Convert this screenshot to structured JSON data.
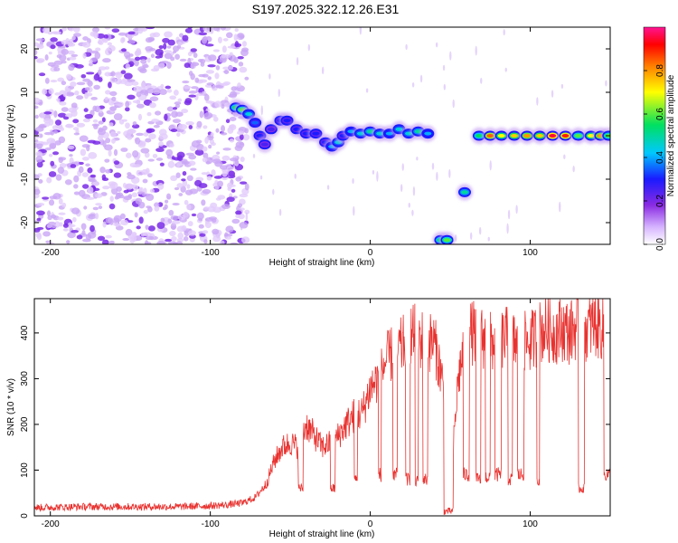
{
  "title": "S197.2025.322.12.26.E31",
  "chart_data": [
    {
      "type": "heatmap",
      "name": "spectrogram",
      "xlabel": "Height of straight line (km)",
      "ylabel": "Frequency (Hz)",
      "xlim": [
        -210,
        150
      ],
      "ylim": [
        -25,
        25
      ],
      "xticks": [
        -200,
        -100,
        0,
        100
      ],
      "yticks": [
        -20,
        -10,
        0,
        10,
        20
      ],
      "noise_region_x": [
        -210,
        -85
      ],
      "frequency_track": [
        {
          "x": -84,
          "f": 6.5,
          "a": 0.55
        },
        {
          "x": -80,
          "f": 6.0,
          "a": 0.6
        },
        {
          "x": -76,
          "f": 5.0,
          "a": 0.45
        },
        {
          "x": -72,
          "f": 3.0,
          "a": 0.35
        },
        {
          "x": -69,
          "f": 0.0,
          "a": 0.3
        },
        {
          "x": -66,
          "f": -2.0,
          "a": 0.25
        },
        {
          "x": -62,
          "f": 1.5,
          "a": 0.25
        },
        {
          "x": -56,
          "f": 3.5,
          "a": 0.3
        },
        {
          "x": -52,
          "f": 3.5,
          "a": 0.3
        },
        {
          "x": -46,
          "f": 1.5,
          "a": 0.3
        },
        {
          "x": -40,
          "f": 0.5,
          "a": 0.3
        },
        {
          "x": -34,
          "f": 0.5,
          "a": 0.3
        },
        {
          "x": -28,
          "f": -1.5,
          "a": 0.3
        },
        {
          "x": -24,
          "f": -2.5,
          "a": 0.4
        },
        {
          "x": -20,
          "f": -1.5,
          "a": 0.45
        },
        {
          "x": -17,
          "f": 0.0,
          "a": 0.3
        },
        {
          "x": -12,
          "f": 1.0,
          "a": 0.4
        },
        {
          "x": -6,
          "f": 0.5,
          "a": 0.45
        },
        {
          "x": 0,
          "f": 1.0,
          "a": 0.5
        },
        {
          "x": 6,
          "f": 0.5,
          "a": 0.45
        },
        {
          "x": 12,
          "f": 0.5,
          "a": 0.4
        },
        {
          "x": 18,
          "f": 1.5,
          "a": 0.45
        },
        {
          "x": 24,
          "f": 0.5,
          "a": 0.45
        },
        {
          "x": 30,
          "f": 1.0,
          "a": 0.5
        },
        {
          "x": 36,
          "f": 0.5,
          "a": 0.4
        },
        {
          "x": 44,
          "f": -24.0,
          "a": 0.55
        },
        {
          "x": 48,
          "f": -24.0,
          "a": 0.6
        },
        {
          "x": 59,
          "f": -13.0,
          "a": 0.5
        },
        {
          "x": 68,
          "f": 0.0,
          "a": 0.55
        },
        {
          "x": 75,
          "f": 0.0,
          "a": 0.85
        },
        {
          "x": 82,
          "f": 0.0,
          "a": 0.7
        },
        {
          "x": 90,
          "f": 0.0,
          "a": 0.75
        },
        {
          "x": 98,
          "f": 0.0,
          "a": 0.8
        },
        {
          "x": 106,
          "f": 0.0,
          "a": 0.75
        },
        {
          "x": 114,
          "f": 0.0,
          "a": 0.95
        },
        {
          "x": 122,
          "f": 0.0,
          "a": 0.9
        },
        {
          "x": 130,
          "f": 0.0,
          "a": 0.6
        },
        {
          "x": 138,
          "f": 0.0,
          "a": 0.7
        },
        {
          "x": 144,
          "f": 0.0,
          "a": 0.8
        },
        {
          "x": 149,
          "f": 0.0,
          "a": 0.6
        }
      ],
      "colorbar": {
        "label": "Normalized spectral amplitude",
        "range": [
          0.0,
          1.0
        ],
        "ticks": [
          "0.0",
          "0.2",
          "0.4",
          "0.6",
          "0.8"
        ]
      }
    },
    {
      "type": "line",
      "name": "snr",
      "xlabel": "Height of straight line (km)",
      "ylabel": "SNR (10 * v/v)",
      "xlim": [
        -210,
        150
      ],
      "ylim": [
        0,
        475
      ],
      "xticks": [
        -200,
        -100,
        0,
        100
      ],
      "yticks": [
        0,
        100,
        200,
        300,
        400
      ],
      "color": "#e8322f",
      "series": [
        {
          "name": "SNR",
          "x": [
            -210,
            -180,
            -150,
            -120,
            -100,
            -90,
            -80,
            -72,
            -65,
            -60,
            -55,
            -50,
            -45,
            -40,
            -35,
            -30,
            -25,
            -20,
            -15,
            -10,
            -5,
            0,
            5,
            10,
            15,
            20,
            25,
            30,
            35,
            40,
            45,
            50,
            55,
            60,
            65,
            70,
            75,
            80,
            85,
            90,
            95,
            100,
            105,
            110,
            115,
            120,
            125,
            130,
            135,
            140,
            145,
            150
          ],
          "y": [
            18,
            20,
            20,
            20,
            22,
            24,
            28,
            40,
            70,
            120,
            150,
            160,
            150,
            200,
            175,
            150,
            160,
            175,
            200,
            220,
            225,
            280,
            300,
            340,
            360,
            370,
            400,
            390,
            380,
            380,
            300,
            60,
            300,
            400,
            400,
            390,
            380,
            380,
            390,
            380,
            380,
            380,
            400,
            410,
            400,
            410,
            400,
            420,
            410,
            420,
            410,
            420
          ]
        }
      ],
      "dropouts": [
        [
          -45,
          -42,
          60
        ],
        [
          -25,
          -22,
          60
        ],
        [
          -10,
          -8,
          80
        ],
        [
          5,
          7,
          90
        ],
        [
          14,
          17,
          90
        ],
        [
          22,
          25,
          80
        ],
        [
          28,
          30,
          75
        ],
        [
          33,
          36,
          80
        ],
        [
          46,
          52,
          10
        ],
        [
          58,
          62,
          90
        ],
        [
          66,
          69,
          80
        ],
        [
          72,
          75,
          85
        ],
        [
          78,
          82,
          90
        ],
        [
          86,
          89,
          80
        ],
        [
          92,
          96,
          90
        ],
        [
          104,
          106,
          80
        ],
        [
          130,
          134,
          60
        ],
        [
          146,
          150,
          90
        ]
      ]
    }
  ]
}
